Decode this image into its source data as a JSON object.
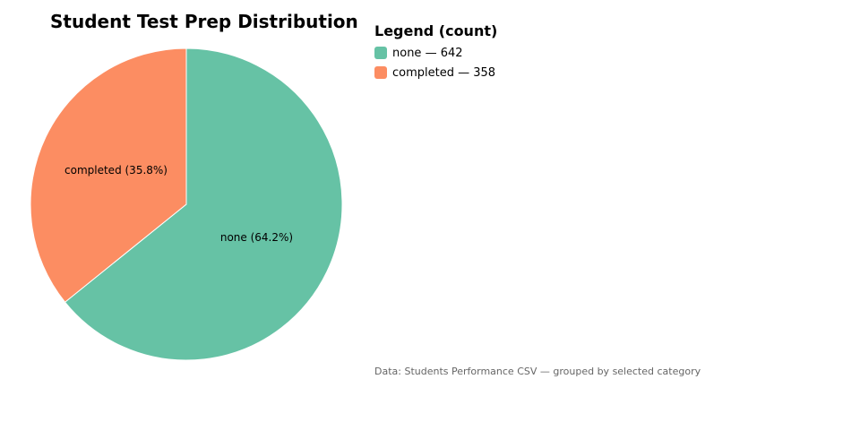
{
  "chart_data": {
    "type": "pie",
    "title": "Student Test Prep Distribution",
    "slices": [
      {
        "name": "none",
        "count": 642,
        "percent": 64.2,
        "label": "none (64.2%)",
        "color": "#66c2a5"
      },
      {
        "name": "completed",
        "count": 358,
        "percent": 35.8,
        "label": "completed (35.8%)",
        "color": "#fc8d62"
      }
    ]
  },
  "legend": {
    "title": "Legend (count)",
    "items": [
      {
        "text": "none — 642",
        "color": "#66c2a5"
      },
      {
        "text": "completed — 358",
        "color": "#fc8d62"
      }
    ]
  },
  "footer": {
    "source": "Data: Students Performance CSV — grouped by selected category"
  }
}
